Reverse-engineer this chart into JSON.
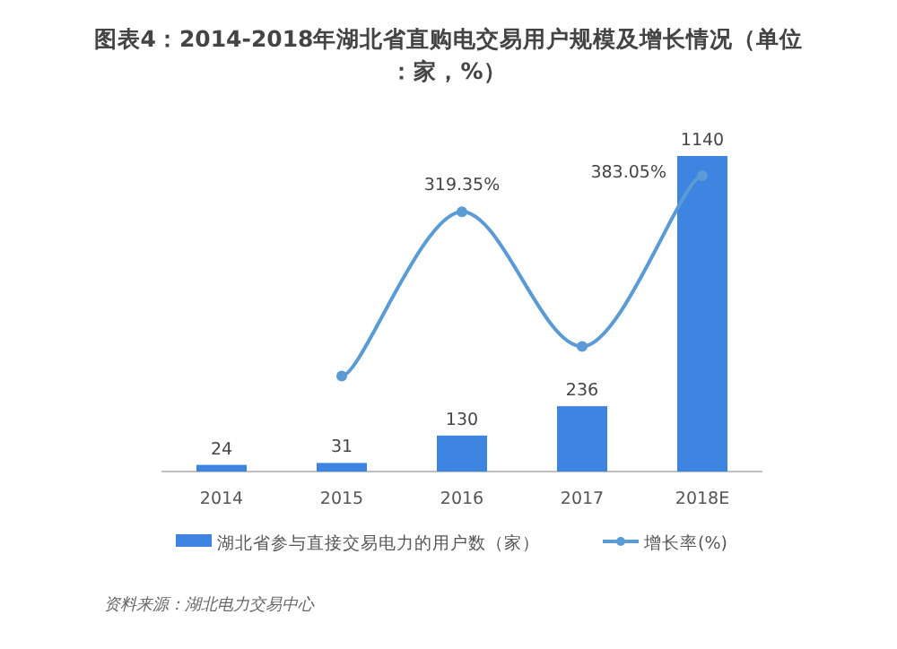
{
  "chart_data": {
    "type": "bar",
    "title": "图表4：2014-2018年湖北省直购电交易用户规模及增长情况（单位：家，%）",
    "categories": [
      "2014",
      "2015",
      "2016",
      "2017",
      "2018E"
    ],
    "series": [
      {
        "name": "湖北省参与直接交易电力的用户数（家）",
        "color": "#3d85e0",
        "values": [
          24,
          31,
          130,
          236,
          1140
        ]
      },
      {
        "name": "增长率(%)",
        "type": "line",
        "axis": "y2",
        "color": "#5b9bd5",
        "marker": "circle",
        "values": [
          null,
          29.17,
          319.35,
          81.54,
          383.05
        ],
        "value_labels": [
          null,
          null,
          "319.35%",
          null,
          "383.05%"
        ]
      }
    ],
    "data_labels": true,
    "legend": "bottom",
    "annotations": [
      "资料来源：湖北电力交易中心"
    ]
  }
}
